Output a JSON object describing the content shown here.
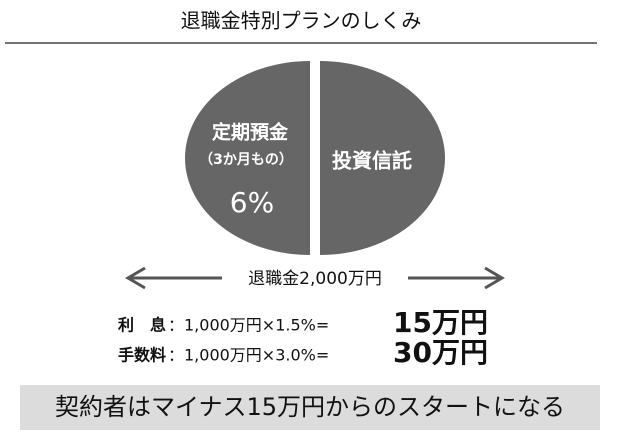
{
  "header": {
    "title": "退職金特別プランのしくみ"
  },
  "circle": {
    "left": {
      "label": "定期預金",
      "note": "（3か月もの）",
      "rate": "6%"
    },
    "right": {
      "label": "投資信託"
    }
  },
  "arrow_label": "退職金2,000万円",
  "rows": [
    {
      "label": "利　息",
      "formula": "：1,000万円×1.5%=",
      "result": "15万円"
    },
    {
      "label": "手数料",
      "formula": "：1,000万円×3.0%=",
      "result": "30万円"
    }
  ],
  "footer": "契約者はマイナス15万円からのスタートになる"
}
